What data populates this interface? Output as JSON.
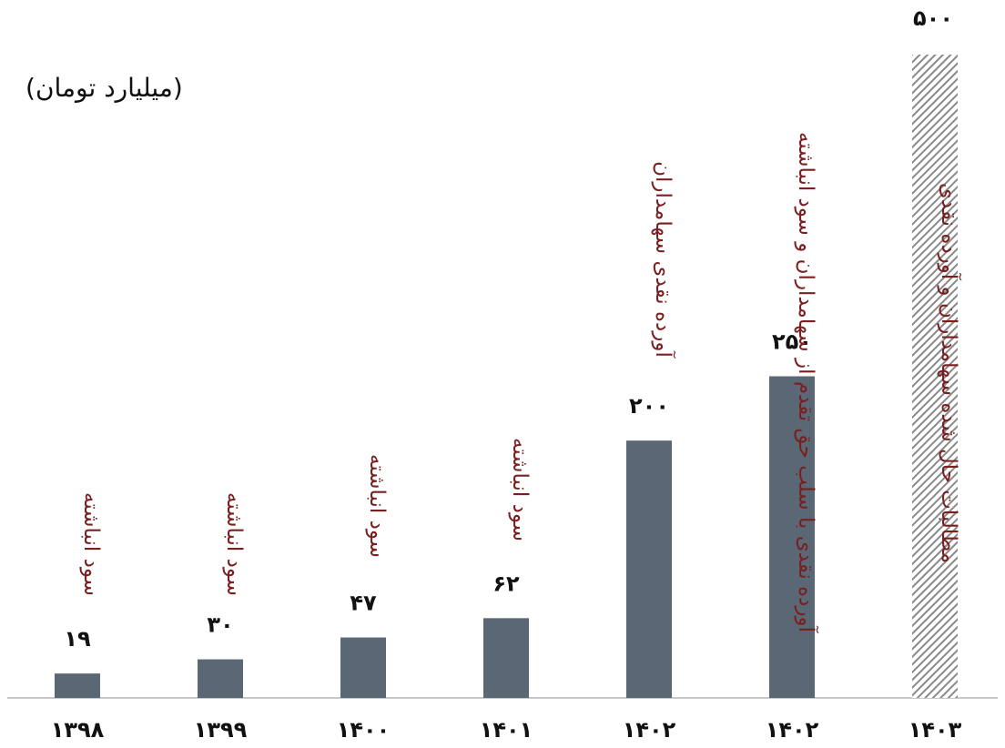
{
  "chart_data": {
    "type": "bar",
    "unit_label": "(میلیارد تومان)",
    "categories": [
      "۱۳۹۸",
      "۱۳۹۹",
      "۱۴۰۰",
      "۱۴۰۱",
      "۱۴۰۲",
      "۱۴۰۲",
      "۱۴۰۳"
    ],
    "values": [
      19,
      30,
      47,
      62,
      200,
      250,
      500
    ],
    "value_labels": [
      "۱۹",
      "۳۰",
      "۴۷",
      "۶۲",
      "۲۰۰",
      "۲۵۰",
      "۵۰۰"
    ],
    "bar_notes": [
      "سود انباشته",
      "سود انباشته",
      "سود انباشته",
      "سود انباشته",
      "آورده نقدی سهامداران",
      "آورده نقدی با سلب حق تقدم از سهامداران و سود انباشته",
      "مطالبات حال شده سهامداران و آورده نقدی"
    ],
    "bar_styles": [
      "solid",
      "solid",
      "solid",
      "solid",
      "solid",
      "solid",
      "hatched"
    ],
    "ylim": [
      0,
      500
    ],
    "grid": false,
    "colors": {
      "bar": "#5a6775",
      "note": "#7a1f1f",
      "text": "#111111",
      "axis": "#c8c8c8",
      "hatch": "#8a8a8a"
    }
  }
}
